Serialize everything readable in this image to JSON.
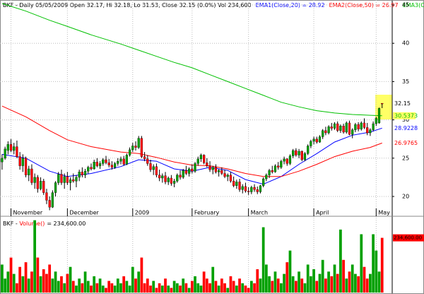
{
  "chart_data": {
    "type": "candlestick",
    "header": "BKF - Daily 05/05/2009 Open 32.17, Hi 32.18, Lo 31.53, Close 32.15 (0.0%) Vol 234,600",
    "xlim": [
      -0.7,
      131.4
    ],
    "xticks": [
      {
        "value": 3,
        "label": "November"
      },
      {
        "value": 22,
        "label": "December"
      },
      {
        "value": 44,
        "label": "2009"
      },
      {
        "value": 64,
        "label": "February"
      },
      {
        "value": 83,
        "label": "March"
      },
      {
        "value": 105,
        "label": "April"
      },
      {
        "value": 126,
        "label": "May"
      }
    ],
    "ylim": [
      18.43,
      45.65
    ],
    "yticks": [
      20,
      25,
      30,
      35,
      40,
      45
    ],
    "grid": true,
    "up_color": "#00a000",
    "down_color": "#ff0000",
    "candles": [
      [
        24.5,
        25.5,
        23.5,
        25.0
      ],
      [
        25.0,
        26.5,
        24.8,
        26.2
      ],
      [
        26.0,
        27.2,
        25.5,
        26.8
      ],
      [
        26.8,
        27.5,
        25.8,
        26.0
      ],
      [
        26.0,
        27.0,
        25.5,
        26.5
      ],
      [
        26.5,
        27.3,
        25.0,
        25.2
      ],
      [
        25.2,
        25.8,
        23.5,
        24.0
      ],
      [
        24.0,
        25.5,
        23.2,
        25.0
      ],
      [
        25.0,
        25.2,
        22.5,
        22.8
      ],
      [
        22.8,
        24.0,
        22.0,
        23.6
      ],
      [
        23.6,
        24.2,
        21.5,
        21.8
      ],
      [
        21.8,
        23.0,
        21.0,
        22.5
      ],
      [
        22.5,
        22.8,
        20.5,
        21.0
      ],
      [
        21.0,
        22.5,
        20.8,
        22.0
      ],
      [
        22.0,
        22.3,
        20.2,
        20.5
      ],
      [
        20.5,
        21.0,
        19.0,
        19.5
      ],
      [
        19.5,
        20.0,
        18.2,
        18.6
      ],
      [
        18.6,
        20.8,
        18.5,
        20.5
      ],
      [
        20.5,
        22.0,
        20.0,
        21.8
      ],
      [
        21.8,
        23.2,
        21.5,
        22.9
      ],
      [
        22.9,
        23.5,
        21.5,
        21.8
      ],
      [
        21.8,
        23.0,
        21.0,
        22.6
      ],
      [
        22.6,
        23.2,
        21.5,
        21.8
      ],
      [
        21.8,
        22.5,
        20.8,
        22.2
      ],
      [
        22.2,
        23.0,
        21.8,
        22.0
      ],
      [
        22.0,
        22.8,
        21.2,
        22.5
      ],
      [
        22.5,
        23.5,
        22.0,
        23.2
      ],
      [
        23.2,
        23.8,
        22.5,
        22.8
      ],
      [
        22.8,
        23.6,
        22.4,
        23.3
      ],
      [
        23.3,
        24.0,
        23.0,
        23.8
      ],
      [
        23.8,
        24.3,
        23.4,
        23.6
      ],
      [
        23.6,
        24.8,
        23.5,
        24.5
      ],
      [
        24.5,
        25.0,
        23.8,
        24.0
      ],
      [
        24.0,
        24.6,
        23.6,
        24.3
      ],
      [
        24.3,
        25.0,
        24.0,
        24.8
      ],
      [
        24.8,
        25.3,
        24.2,
        24.4
      ],
      [
        24.4,
        24.9,
        23.8,
        24.1
      ],
      [
        24.1,
        24.6,
        23.5,
        23.8
      ],
      [
        23.8,
        24.5,
        23.6,
        24.3
      ],
      [
        24.3,
        25.0,
        24.0,
        24.6
      ],
      [
        24.6,
        25.2,
        24.2,
        24.9
      ],
      [
        24.9,
        25.3,
        24.0,
        24.2
      ],
      [
        24.2,
        25.6,
        24.1,
        25.4
      ],
      [
        25.4,
        26.4,
        25.2,
        26.1
      ],
      [
        26.1,
        27.0,
        25.8,
        26.6
      ],
      [
        26.6,
        27.2,
        26.0,
        26.4
      ],
      [
        26.4,
        27.9,
        26.2,
        27.6
      ],
      [
        27.6,
        27.9,
        25.0,
        25.2
      ],
      [
        25.2,
        25.8,
        24.6,
        24.9
      ],
      [
        24.9,
        25.4,
        24.0,
        24.3
      ],
      [
        24.3,
        24.8,
        23.2,
        23.5
      ],
      [
        23.5,
        24.2,
        22.8,
        23.9
      ],
      [
        23.9,
        24.3,
        22.5,
        22.8
      ],
      [
        22.8,
        23.5,
        22.0,
        22.4
      ],
      [
        22.4,
        23.0,
        21.8,
        22.7
      ],
      [
        22.7,
        23.2,
        21.6,
        21.9
      ],
      [
        21.9,
        22.6,
        21.5,
        22.4
      ],
      [
        22.4,
        22.8,
        21.4,
        21.7
      ],
      [
        21.7,
        22.3,
        21.2,
        22.0
      ],
      [
        22.0,
        23.0,
        21.8,
        22.8
      ],
      [
        22.8,
        23.4,
        22.2,
        22.5
      ],
      [
        22.5,
        23.6,
        22.3,
        23.4
      ],
      [
        23.4,
        24.0,
        22.8,
        23.0
      ],
      [
        23.0,
        23.8,
        22.6,
        23.6
      ],
      [
        23.6,
        24.2,
        23.0,
        23.3
      ],
      [
        23.3,
        24.5,
        23.1,
        24.3
      ],
      [
        24.3,
        25.2,
        24.0,
        24.9
      ],
      [
        24.9,
        25.6,
        24.5,
        25.4
      ],
      [
        25.4,
        25.5,
        24.2,
        24.4
      ],
      [
        24.4,
        25.0,
        23.8,
        24.0
      ],
      [
        24.0,
        24.6,
        23.2,
        23.5
      ],
      [
        23.5,
        24.0,
        22.9,
        23.8
      ],
      [
        23.8,
        24.2,
        23.0,
        23.2
      ],
      [
        23.2,
        23.6,
        22.6,
        23.4
      ],
      [
        23.4,
        23.8,
        22.8,
        23.0
      ],
      [
        23.0,
        23.5,
        22.4,
        22.6
      ],
      [
        22.6,
        23.0,
        22.0,
        22.8
      ],
      [
        22.8,
        23.2,
        21.8,
        22.0
      ],
      [
        22.0,
        22.6,
        21.2,
        21.4
      ],
      [
        21.4,
        22.2,
        21.0,
        21.9
      ],
      [
        21.9,
        22.3,
        20.6,
        20.9
      ],
      [
        20.9,
        21.6,
        20.4,
        21.3
      ],
      [
        21.3,
        21.8,
        20.5,
        20.7
      ],
      [
        20.7,
        21.2,
        20.2,
        20.6
      ],
      [
        20.6,
        21.4,
        20.3,
        21.2
      ],
      [
        21.2,
        21.6,
        20.6,
        20.9
      ],
      [
        20.9,
        21.3,
        20.3,
        20.6
      ],
      [
        20.6,
        21.5,
        20.4,
        21.4
      ],
      [
        21.4,
        22.5,
        21.2,
        22.3
      ],
      [
        22.3,
        23.0,
        22.0,
        22.8
      ],
      [
        22.8,
        23.6,
        22.4,
        23.4
      ],
      [
        23.4,
        24.0,
        23.0,
        23.2
      ],
      [
        23.2,
        24.2,
        23.1,
        24.0
      ],
      [
        24.0,
        24.5,
        23.5,
        23.8
      ],
      [
        23.8,
        24.8,
        23.6,
        24.6
      ],
      [
        24.6,
        25.2,
        24.2,
        24.9
      ],
      [
        24.9,
        25.0,
        24.0,
        24.3
      ],
      [
        24.3,
        25.5,
        24.1,
        25.3
      ],
      [
        25.3,
        26.2,
        25.0,
        26.0
      ],
      [
        26.0,
        26.3,
        25.2,
        25.4
      ],
      [
        25.4,
        26.2,
        25.0,
        25.9
      ],
      [
        25.9,
        26.0,
        24.6,
        24.8
      ],
      [
        24.8,
        25.8,
        24.6,
        25.6
      ],
      [
        25.6,
        26.8,
        25.4,
        26.6
      ],
      [
        26.6,
        27.4,
        26.3,
        27.2
      ],
      [
        27.2,
        27.8,
        26.8,
        27.5
      ],
      [
        27.5,
        27.8,
        26.9,
        27.1
      ],
      [
        27.1,
        28.0,
        27.0,
        27.8
      ],
      [
        27.8,
        28.8,
        27.5,
        28.6
      ],
      [
        28.6,
        29.1,
        28.0,
        28.3
      ],
      [
        28.3,
        29.3,
        28.1,
        29.1
      ],
      [
        29.1,
        29.6,
        28.6,
        28.9
      ],
      [
        28.9,
        29.7,
        28.7,
        29.5
      ],
      [
        29.5,
        29.8,
        28.4,
        28.6
      ],
      [
        28.6,
        29.4,
        28.3,
        29.2
      ],
      [
        29.2,
        29.5,
        28.2,
        28.4
      ],
      [
        28.4,
        29.8,
        28.2,
        29.6
      ],
      [
        29.6,
        29.9,
        28.0,
        28.1
      ],
      [
        28.1,
        28.9,
        27.6,
        28.7
      ],
      [
        28.7,
        29.6,
        28.4,
        29.4
      ],
      [
        29.4,
        29.7,
        28.5,
        28.8
      ],
      [
        28.8,
        29.8,
        28.6,
        29.6
      ],
      [
        29.6,
        30.2,
        28.8,
        29.0
      ],
      [
        29.0,
        29.6,
        28.0,
        28.3
      ],
      [
        28.3,
        28.9,
        27.9,
        28.7
      ],
      [
        28.7,
        29.8,
        28.5,
        29.5
      ],
      [
        29.5,
        30.4,
        29.2,
        30.2
      ],
      [
        29.6,
        31.6,
        29.5,
        31.5
      ],
      [
        32.17,
        32.18,
        31.53,
        32.15
      ]
    ],
    "series": [
      {
        "name": "EMA1(Close,20) = 28.92",
        "color": "#0000ff",
        "x": [
          0,
          8,
          16,
          22,
          30,
          40,
          46,
          52,
          58,
          64,
          70,
          76,
          82,
          88,
          94,
          100,
          106,
          112,
          118,
          124,
          128
        ],
        "values": [
          25.5,
          25.0,
          23.3,
          22.6,
          23.0,
          23.9,
          24.8,
          24.6,
          23.6,
          23.3,
          23.8,
          23.4,
          22.2,
          21.6,
          22.6,
          24.2,
          25.6,
          27.1,
          28.0,
          28.4,
          28.9228
        ],
        "tag_color": "#ffffff"
      },
      {
        "name": "EMA2(Close,50) = 26.97",
        "color": "#ff0000",
        "x": [
          0,
          8,
          16,
          22,
          30,
          40,
          46,
          52,
          58,
          64,
          70,
          76,
          82,
          88,
          94,
          100,
          106,
          112,
          118,
          124,
          128
        ],
        "values": [
          31.8,
          30.4,
          28.6,
          27.4,
          26.5,
          25.8,
          25.6,
          25.1,
          24.5,
          24.1,
          24.0,
          23.6,
          23.0,
          22.6,
          22.6,
          23.3,
          24.2,
          25.2,
          25.9,
          26.4,
          26.9765
        ],
        "tag_color": "#ffffff"
      },
      {
        "name": "EMA3(Close,200) = 30.54",
        "color": "#00c000",
        "x": [
          0,
          8,
          16,
          22,
          30,
          40,
          46,
          52,
          58,
          64,
          70,
          76,
          82,
          88,
          94,
          100,
          106,
          112,
          118,
          124,
          128
        ],
        "values": [
          45.2,
          44.2,
          43.0,
          42.2,
          41.1,
          39.9,
          39.1,
          38.3,
          37.5,
          36.8,
          35.9,
          35.0,
          34.1,
          33.2,
          32.3,
          31.7,
          31.2,
          30.9,
          30.7,
          30.6,
          30.5373
        ],
        "tag_color": "#ffff66"
      }
    ],
    "volume": {
      "prefix": "BKF - ",
      "name": "Volume()",
      "suffix": "= 234,600.00",
      "color": "#ff0000",
      "ylim": [
        0,
        321000
      ],
      "end_label": "234,600.00",
      "values": [
        120000,
        60000,
        90000,
        150000,
        80000,
        40000,
        110000,
        70000,
        130000,
        60000,
        90000,
        310000,
        150000,
        70000,
        100000,
        80000,
        120000,
        60000,
        90000,
        50000,
        70000,
        40000,
        80000,
        110000,
        50000,
        30000,
        60000,
        40000,
        90000,
        50000,
        30000,
        70000,
        40000,
        60000,
        30000,
        20000,
        50000,
        40000,
        30000,
        60000,
        40000,
        70000,
        50000,
        30000,
        110000,
        60000,
        90000,
        150000,
        40000,
        60000,
        30000,
        50000,
        20000,
        40000,
        30000,
        60000,
        30000,
        20000,
        50000,
        40000,
        30000,
        60000,
        40000,
        20000,
        50000,
        70000,
        40000,
        30000,
        90000,
        60000,
        40000,
        110000,
        50000,
        30000,
        60000,
        40000,
        20000,
        70000,
        50000,
        30000,
        60000,
        40000,
        30000,
        20000,
        50000,
        40000,
        100000,
        60000,
        280000,
        120000,
        70000,
        50000,
        90000,
        60000,
        40000,
        80000,
        130000,
        180000,
        70000,
        50000,
        90000,
        60000,
        40000,
        120000,
        70000,
        100000,
        50000,
        80000,
        140000,
        60000,
        90000,
        70000,
        120000,
        80000,
        270000,
        140000,
        60000,
        90000,
        120000,
        80000,
        70000,
        250000,
        110000,
        60000,
        80000,
        250000,
        180000,
        90000,
        234600
      ]
    }
  }
}
